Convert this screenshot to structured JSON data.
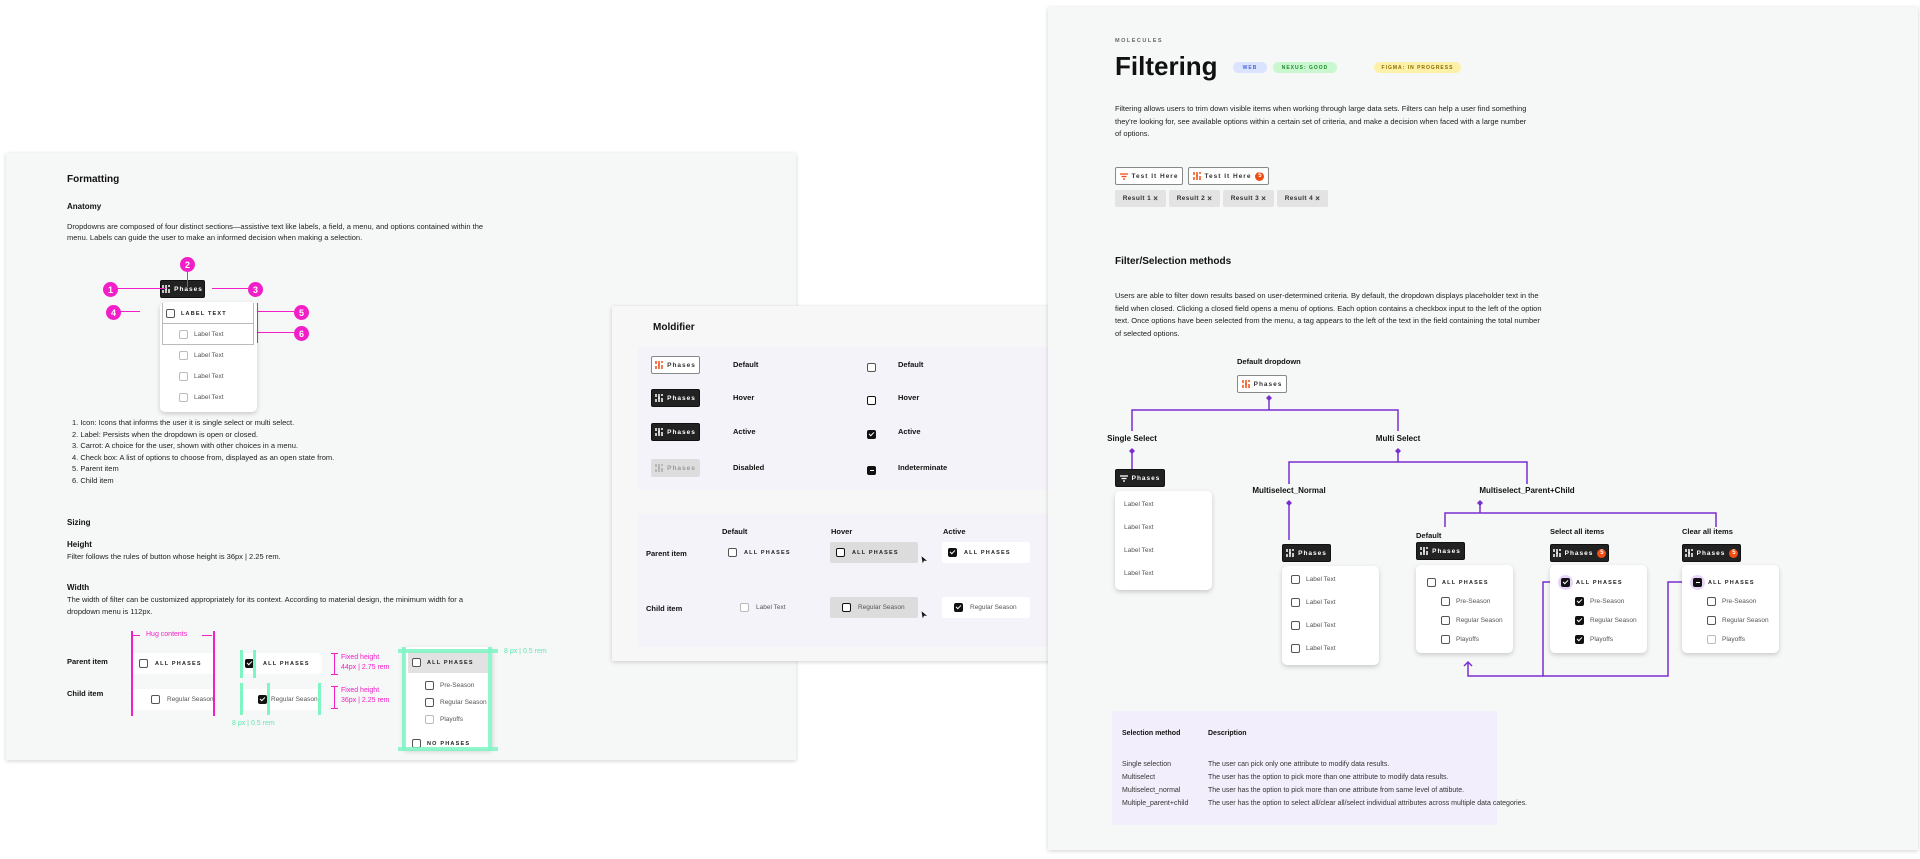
{
  "formatting": {
    "title": "Formatting",
    "anatomy_heading": "Anatomy",
    "anatomy_text": "Dropdowns are composed of four distinct sections—assistive text like labels, a field, a menu, and options contained within the menu. Labels can guide the user to make an informed decision when making a selection.",
    "diagram": {
      "button_label": "Phases",
      "markers": [
        "1",
        "2",
        "3",
        "4",
        "5",
        "6"
      ],
      "parent_label": "LABEL TEXT",
      "child_labels": [
        "Label Text",
        "Label Text",
        "Label Text",
        "Label Text"
      ]
    },
    "list": [
      "1. Icon: Icons that informs the user it is single select or multi select.",
      "2. Label: Persists when the dropdown is open or closed.",
      "3. Carrot: A choice for the user, shown with other choices in a menu.",
      "4. Check box: A list of options to choose from, displayed as an open state from.",
      "5. Parent item",
      "6. Child item"
    ],
    "sizing_heading": "Sizing",
    "height_heading": "Height",
    "height_text": "Filter follows the rules of button whose height is 36px | 2.25 rem.",
    "width_heading": "Width",
    "width_text": "The width of filter can be customized appropriately for its context. According to material design, the minimum width for a dropdown menu is 112px.",
    "spec": {
      "parent_label": "Parent item",
      "child_label": "Child item",
      "hug": "Hug contents",
      "parent_option": "ALL PHASES",
      "child_option": "Regular Season",
      "fixed_parent": "Fixed height",
      "fixed_parent_value": "44px | 2.75 rem",
      "fixed_child": "Fixed height",
      "fixed_child_value": "36px | 2.25 rem",
      "padding_label": "8 px | 0.5 rem",
      "menu_padding_label": "8 px | 0.5 rem",
      "menu": [
        {
          "text": "ALL PHASES",
          "parent": true
        },
        {
          "text": "Pre-Season"
        },
        {
          "text": "Regular Season"
        },
        {
          "text": "Playoffs",
          "light": true
        },
        {
          "text": "NO PHASES",
          "parent": true
        }
      ]
    }
  },
  "modifier": {
    "title": "Moldifier",
    "states": [
      {
        "button": "Phases",
        "style": "light",
        "label": "Default",
        "checkbox": "default",
        "checkbox_label": "Default"
      },
      {
        "button": "Phases",
        "style": "dark",
        "label": "Hover",
        "checkbox": "hover",
        "checkbox_label": "Hover"
      },
      {
        "button": "Phases",
        "style": "dark",
        "label": "Active",
        "checkbox": "checked",
        "checkbox_label": "Active"
      },
      {
        "button": "Phases",
        "style": "disabled",
        "label": "Disabled",
        "checkbox": "indeterminate",
        "checkbox_label": "Indeterminate"
      }
    ],
    "item_headers": [
      "Default",
      "Hover",
      "Active"
    ],
    "item_rows": [
      {
        "label": "Parent item",
        "cells": [
          "ALL PHASES",
          "ALL PHASES",
          "ALL PHASES"
        ]
      },
      {
        "label": "Child item",
        "cells": [
          "Label Text",
          "Regular Season",
          "Regular Season"
        ]
      }
    ]
  },
  "filtering": {
    "eyebrow": "MOLECULES",
    "title": "Filtering",
    "badges": [
      {
        "text": "WEB",
        "bg": "#dbe4ff",
        "fg": "#4a63d8"
      },
      {
        "text": "NEXUS: GOOD",
        "bg": "#c9f7cf",
        "fg": "#1f8a2c"
      },
      {
        "text": "FIGMA: IN PROGRESS",
        "bg": "#fdf0a8",
        "fg": "#8a6d00"
      }
    ],
    "intro": "Filtering allows users to trim down visible items when working through large data sets. Filters can help a user find something they're looking for, see available options within a certain set of criteria, and make a decision when faced with a large number of options.",
    "test_buttons": [
      {
        "label": "Test It Here",
        "icon": "funnel-icon"
      },
      {
        "label": "Test It Here",
        "icon": "sliders-icon",
        "count": "5"
      }
    ],
    "results": [
      "Result 1",
      "Result 2",
      "Result 3",
      "Result 4"
    ],
    "result_close": "×",
    "section_title": "Filter/Selection methods",
    "section_text": "Users are able to filter down results based on user-determined criteria. By default, the dropdown displays placeholder text in the field when closed. Clicking a closed field opens a menu of options. Each option contains a checkbox input to the left of the option text. Once options have been selected from the menu, a tag appears to the left of the text in the field containing the total number of selected options.",
    "tree": {
      "default_dropdown": "Default dropdown",
      "button_label": "Phases",
      "single_select": "Single Select",
      "multi_select": "Multi Select",
      "multiselect_normal": "Multiselect_Normal",
      "multiselect_parent_child": "Multiselect_Parent+Child",
      "pc_default": "Default",
      "pc_select_all": "Select all items",
      "pc_clear_all": "Clear all items",
      "count": "5",
      "single_items": [
        "Label Text",
        "Label Text",
        "Label Text",
        "Label Text"
      ],
      "normal_items": [
        "Label Text",
        "Label Text",
        "Label Text",
        "Label Text"
      ],
      "parent_label": "ALL PHASES",
      "children": [
        "Pre-Season",
        "Regular Season",
        "Playoffs"
      ]
    },
    "accent": "#7a2fd0",
    "table": {
      "headers": [
        "Selection method",
        "Description"
      ],
      "rows": [
        [
          "Single selection",
          "The user can pick only one attribute to modify data results."
        ],
        [
          "Multiselect",
          "The user has the option to pick more than one attribute to modify data results."
        ],
        [
          "Multiselect_normal",
          "The user has the option to pick more than one attribute from same level of attibute."
        ],
        [
          "Multiple_parent+child",
          "The user has the option to select all/clear all/select individual attributes across multiple data categories."
        ]
      ]
    }
  }
}
